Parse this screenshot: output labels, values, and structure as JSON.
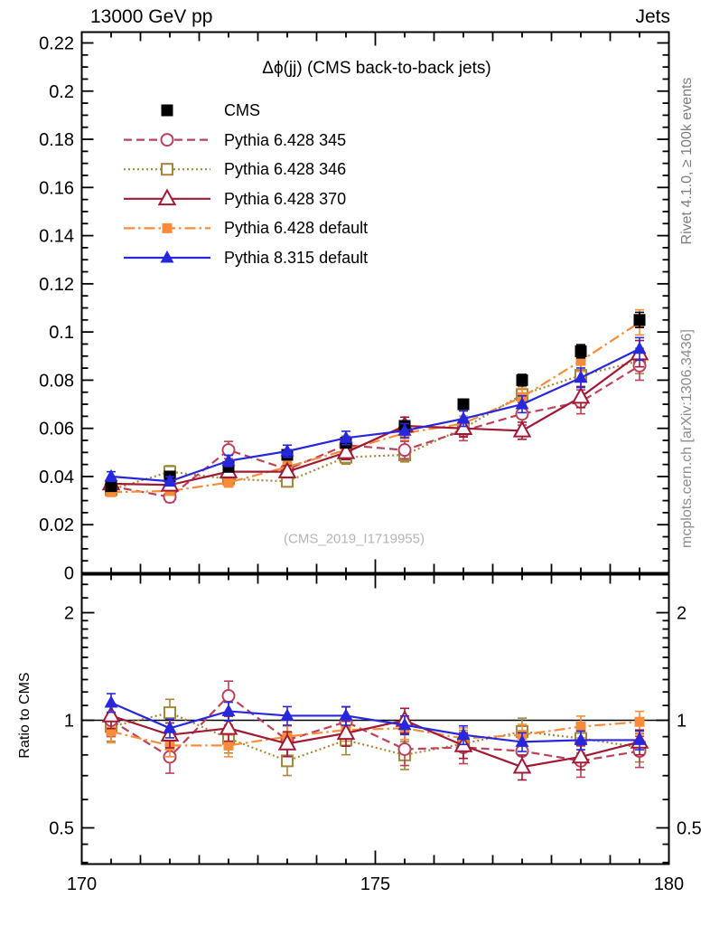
{
  "header": {
    "left": "13000 GeV pp",
    "right": "Jets"
  },
  "panel_title": "Δϕ(jj) (CMS back-to-back jets)",
  "watermark": "(CMS_2019_I1719955)",
  "side_text_top": "Rivet 4.1.0, ≥ 100k events",
  "side_text_bottom": "mcplots.cern.ch [arXiv:1306.3436]",
  "ratio_axis_label": "Ratio to CMS",
  "chart_data": {
    "type": "line",
    "title": "Δϕ(jj) (CMS back-to-back jets)",
    "xlabel": "",
    "ylabel": "",
    "legend_position": "top-left-inset",
    "grid": false,
    "xlim": [
      170,
      180
    ],
    "ylim_main": [
      0,
      0.2245
    ],
    "ratio_ylim": [
      0.396,
      2.555
    ],
    "ratio_scale": "log",
    "bin_width": 1,
    "x": [
      170.5,
      171.5,
      172.5,
      173.5,
      174.5,
      175.5,
      176.5,
      177.5,
      178.5,
      179.5
    ],
    "xticks": {
      "labeled": [
        170,
        175,
        180
      ],
      "labels": [
        "170",
        "175",
        "180"
      ],
      "integer_step": 1,
      "minor_step": 0.5
    },
    "yticks_main": {
      "values": [
        0,
        0.02,
        0.04,
        0.06,
        0.08,
        0.1,
        0.12,
        0.14,
        0.16,
        0.18,
        0.2,
        0.22
      ],
      "labels": [
        "0",
        "0.02",
        "0.04",
        "0.06",
        "0.08",
        "0.1",
        "0.12",
        "0.14",
        "0.16",
        "0.18",
        "0.2",
        "0.22"
      ],
      "minor_step": 0.005,
      "major_step": 0.02
    },
    "yticks_ratio": {
      "labeled": [
        0.5,
        1,
        2
      ],
      "labels": [
        "0.5",
        "1",
        "2"
      ],
      "minor": [
        0.4,
        0.45,
        0.6,
        0.7,
        0.8,
        0.9,
        1.1,
        1.2,
        1.3,
        1.4,
        1.5,
        1.6,
        1.7,
        1.8,
        1.9,
        2.2,
        2.4
      ]
    },
    "reference_line_ratio": 1,
    "draw_order": [
      "pythia-6428-346",
      "pythia-6428-345",
      "pythia-6428-default",
      "pythia-6428-370",
      "cms",
      "pythia-8315-default"
    ],
    "series": [
      {
        "id": "cms",
        "label": "CMS",
        "role": "data",
        "color": "#000000",
        "marker": "square-filled",
        "msize": 13,
        "line": "none",
        "values": [
          0.036,
          0.04,
          0.044,
          0.049,
          0.054,
          0.061,
          0.07,
          0.08,
          0.092,
          0.105
        ],
        "err_frac": 0.03
      },
      {
        "id": "pythia-6428-345",
        "label": "Pythia 6.428 345",
        "role": "mc",
        "color": "#bb4059",
        "marker": "circle-open",
        "msize": 13,
        "line": "dashed",
        "values": [
          0.036,
          0.0315,
          0.051,
          0.043,
          0.053,
          0.051,
          0.059,
          0.066,
          0.071,
          0.086
        ],
        "ratio": [
          1.0,
          0.79,
          1.17,
          0.88,
          0.99,
          0.83,
          0.84,
          0.82,
          0.77,
          0.82
        ],
        "err_frac": 0.07,
        "err_frac_ratio": 0.1
      },
      {
        "id": "pythia-6428-346",
        "label": "Pythia 6.428 346",
        "role": "mc",
        "color": "#a5873b",
        "marker": "square-open",
        "msize": 12,
        "line": "dotted",
        "values": [
          0.0345,
          0.042,
          0.039,
          0.038,
          0.048,
          0.049,
          0.06,
          0.074,
          0.082,
          0.088
        ],
        "ratio": [
          0.96,
          1.05,
          0.89,
          0.77,
          0.88,
          0.8,
          0.86,
          0.93,
          0.89,
          0.84
        ],
        "err_frac": 0.06,
        "err_frac_ratio": 0.09
      },
      {
        "id": "pythia-6428-370",
        "label": "Pythia 6.428 370",
        "role": "mc",
        "color": "#a01a35",
        "marker": "triangle-open",
        "msize": 15,
        "line": "solid",
        "values": [
          0.037,
          0.0365,
          0.042,
          0.042,
          0.05,
          0.061,
          0.06,
          0.059,
          0.073,
          0.091
        ],
        "ratio": [
          1.03,
          0.91,
          0.95,
          0.86,
          0.92,
          1.0,
          0.85,
          0.74,
          0.79,
          0.87
        ],
        "err_frac": 0.06,
        "err_frac_ratio": 0.08
      },
      {
        "id": "pythia-6428-default",
        "label": "Pythia 6.428 default",
        "role": "mc",
        "color": "#f88c3a",
        "marker": "square-filled",
        "msize": 11,
        "line": "dashdot",
        "values": [
          0.0335,
          0.034,
          0.0375,
          0.044,
          0.051,
          0.058,
          0.062,
          0.073,
          0.088,
          0.104
        ],
        "ratio": [
          0.93,
          0.85,
          0.85,
          0.9,
          0.94,
          0.95,
          0.89,
          0.91,
          0.96,
          0.99
        ],
        "err_frac": 0.05,
        "err_frac_ratio": 0.07
      },
      {
        "id": "pythia-8315-default",
        "label": "Pythia 8.315 default",
        "role": "mc",
        "color": "#2727dd",
        "marker": "triangle-filled",
        "msize": 13,
        "line": "solid",
        "values": [
          0.04,
          0.038,
          0.0465,
          0.0505,
          0.056,
          0.059,
          0.064,
          0.07,
          0.081,
          0.093
        ],
        "ratio": [
          1.12,
          0.95,
          1.06,
          1.03,
          1.03,
          0.97,
          0.91,
          0.87,
          0.88,
          0.88
        ],
        "err_frac": 0.05,
        "err_frac_ratio": 0.06
      }
    ]
  }
}
